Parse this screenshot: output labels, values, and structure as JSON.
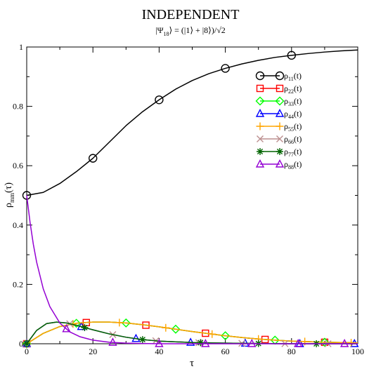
{
  "chart_data": {
    "type": "line",
    "title": "INDEPENDENT",
    "subtitle": "|Ψ18⟩ = (|1⟩ + |8⟩)/√2",
    "subtitle_parts": {
      "pre": "|Ψ",
      "sub": "18",
      "post": "⟩ = (|1⟩ + |8⟩)/√2"
    },
    "xlabel": "τ",
    "ylabel": "ρmm(τ)",
    "ylabel_parts": {
      "main": "ρ",
      "sub": "mm",
      "post": "(τ)"
    },
    "xlim": [
      0,
      100
    ],
    "ylim": [
      0,
      1
    ],
    "x_ticks": [
      0,
      20,
      40,
      60,
      80,
      100
    ],
    "y_ticks": [
      0,
      0.2,
      0.4,
      0.6,
      0.8,
      1
    ],
    "x_tick_labels": [
      "0",
      "20",
      "40",
      "60",
      "80",
      "100"
    ],
    "y_tick_labels": [
      "0",
      "0.2",
      "0.4",
      "0.6",
      "0.8",
      "1"
    ],
    "grid": false,
    "legend_position": "top-right",
    "series": [
      {
        "name": "ρ11(t)",
        "label_main": "ρ",
        "label_sub": "11",
        "label_post": "(t)",
        "color": "#000000",
        "marker": "circle",
        "x": [
          0,
          5,
          10,
          15,
          20,
          25,
          30,
          35,
          40,
          45,
          50,
          55,
          60,
          65,
          70,
          75,
          80,
          85,
          90,
          95,
          100
        ],
        "y": [
          0.5,
          0.51,
          0.54,
          0.58,
          0.625,
          0.68,
          0.735,
          0.782,
          0.822,
          0.858,
          0.887,
          0.91,
          0.928,
          0.943,
          0.955,
          0.965,
          0.972,
          0.978,
          0.983,
          0.987,
          0.99
        ],
        "marker_x": [
          0,
          20,
          40,
          60,
          80
        ]
      },
      {
        "name": "ρ22(t)",
        "label_main": "ρ",
        "label_sub": "22",
        "label_post": "(t)",
        "color": "#ff0000",
        "marker": "square",
        "x": [
          0,
          5,
          10,
          15,
          20,
          25,
          30,
          35,
          40,
          45,
          50,
          55,
          60,
          65,
          70,
          75,
          80,
          85,
          90,
          95,
          100
        ],
        "y": [
          0,
          0.035,
          0.058,
          0.069,
          0.073,
          0.073,
          0.07,
          0.064,
          0.057,
          0.049,
          0.041,
          0.034,
          0.027,
          0.021,
          0.016,
          0.012,
          0.009,
          0.007,
          0.005,
          0.004,
          0.003
        ],
        "marker_x": [
          0,
          18,
          36,
          54,
          72,
          90
        ]
      },
      {
        "name": "ρ33(t)",
        "label_main": "ρ",
        "label_sub": "33",
        "label_post": "(t)",
        "color": "#00ff00",
        "marker": "diamond",
        "x": [
          0,
          5,
          10,
          15,
          20,
          25,
          30,
          35,
          40,
          45,
          50,
          55,
          60,
          65,
          70,
          75,
          80,
          85,
          90,
          95,
          100
        ],
        "y": [
          0,
          0.035,
          0.058,
          0.069,
          0.073,
          0.073,
          0.07,
          0.064,
          0.057,
          0.049,
          0.041,
          0.034,
          0.027,
          0.021,
          0.016,
          0.012,
          0.009,
          0.007,
          0.005,
          0.004,
          0.003
        ],
        "marker_x": [
          0,
          15,
          30,
          45,
          60,
          75,
          90
        ]
      },
      {
        "name": "ρ44(t)",
        "label_main": "ρ",
        "label_sub": "44",
        "label_post": "(t)",
        "color": "#0000ff",
        "marker": "triangle",
        "x": [
          0,
          3,
          6,
          9,
          12,
          15,
          20,
          25,
          30,
          35,
          40,
          50,
          60,
          70,
          80,
          90,
          100
        ],
        "y": [
          0,
          0.045,
          0.068,
          0.073,
          0.07,
          0.062,
          0.047,
          0.033,
          0.022,
          0.014,
          0.009,
          0.004,
          0.002,
          0.001,
          0,
          0,
          0
        ],
        "marker_x": [
          0,
          16.5,
          33,
          49.5,
          66,
          82.5,
          99
        ]
      },
      {
        "name": "ρ55(t)",
        "label_main": "ρ",
        "label_sub": "55",
        "label_post": "(t)",
        "color": "#ffa500",
        "marker": "plus",
        "x": [
          0,
          5,
          10,
          15,
          20,
          25,
          30,
          35,
          40,
          45,
          50,
          55,
          60,
          65,
          70,
          75,
          80,
          85,
          90,
          95,
          100
        ],
        "y": [
          0,
          0.035,
          0.058,
          0.069,
          0.073,
          0.073,
          0.07,
          0.064,
          0.057,
          0.049,
          0.041,
          0.034,
          0.027,
          0.021,
          0.016,
          0.012,
          0.009,
          0.007,
          0.005,
          0.004,
          0.003
        ],
        "marker_x": [
          0,
          14,
          28,
          42,
          56,
          70,
          84,
          98
        ]
      },
      {
        "name": "ρ66(t)",
        "label_main": "ρ",
        "label_sub": "66",
        "label_post": "(t)",
        "color": "#bc8f8f",
        "marker": "cross",
        "x": [
          0,
          3,
          6,
          9,
          12,
          15,
          20,
          25,
          30,
          35,
          40,
          50,
          60,
          70,
          80,
          90,
          100
        ],
        "y": [
          0,
          0.045,
          0.068,
          0.073,
          0.07,
          0.062,
          0.047,
          0.033,
          0.022,
          0.014,
          0.009,
          0.004,
          0.002,
          0.001,
          0,
          0,
          0
        ],
        "marker_x": [
          0,
          13,
          26,
          39,
          52,
          65,
          78,
          91
        ]
      },
      {
        "name": "ρ77(t)",
        "label_main": "ρ",
        "label_sub": "77",
        "label_post": "(t)",
        "color": "#006400",
        "marker": "star",
        "x": [
          0,
          3,
          6,
          9,
          12,
          15,
          20,
          25,
          30,
          35,
          40,
          50,
          60,
          70,
          80,
          90,
          100
        ],
        "y": [
          0,
          0.045,
          0.068,
          0.073,
          0.07,
          0.062,
          0.047,
          0.033,
          0.022,
          0.014,
          0.009,
          0.004,
          0.002,
          0.001,
          0,
          0,
          0
        ],
        "marker_x": [
          0,
          17.5,
          35,
          52.5,
          70,
          87.5
        ]
      },
      {
        "name": "ρ88(t)",
        "label_main": "ρ",
        "label_sub": "88",
        "label_post": "(t)",
        "color": "#9400d3",
        "marker": "triangle",
        "x": [
          0,
          1,
          2,
          3,
          5,
          7,
          10,
          13,
          16,
          20,
          25,
          30,
          35,
          40,
          50,
          60,
          70,
          80,
          90,
          100
        ],
        "y": [
          0.5,
          0.41,
          0.335,
          0.275,
          0.185,
          0.125,
          0.07,
          0.04,
          0.024,
          0.012,
          0.005,
          0.002,
          0.001,
          0,
          0,
          0,
          0,
          0,
          0,
          0
        ],
        "marker_x": [
          12,
          26,
          40,
          54,
          68,
          82,
          96
        ]
      }
    ]
  }
}
